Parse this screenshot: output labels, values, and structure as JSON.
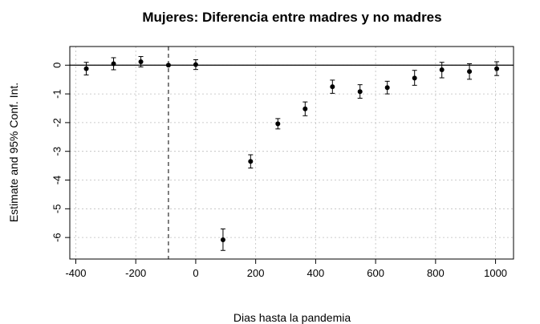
{
  "chart_data": {
    "type": "scatter",
    "title": "Mujeres: Diferencia entre madres y no madres",
    "xlabel": "Dias hasta la pandemia",
    "ylabel": "Estimate and 95% Conf. Int.",
    "xlim": [
      -420,
      1060
    ],
    "ylim": [
      -6.75,
      0.65
    ],
    "x_ticks": [
      -400,
      -200,
      0,
      200,
      400,
      600,
      800,
      1000
    ],
    "y_ticks": [
      0,
      -1,
      -2,
      -3,
      -4,
      -5,
      -6
    ],
    "grid": true,
    "horizontal_reference": 0,
    "vertical_reference": -91,
    "points": [
      {
        "x": -365,
        "y": -0.12,
        "lo": -0.34,
        "hi": 0.1
      },
      {
        "x": -274,
        "y": 0.05,
        "lo": -0.16,
        "hi": 0.26
      },
      {
        "x": -183,
        "y": 0.12,
        "lo": -0.06,
        "hi": 0.3
      },
      {
        "x": -91,
        "y": 0.0,
        "lo": 0.0,
        "hi": 0.0
      },
      {
        "x": 0,
        "y": 0.02,
        "lo": -0.15,
        "hi": 0.19
      },
      {
        "x": 91,
        "y": -6.08,
        "lo": -6.45,
        "hi": -5.7
      },
      {
        "x": 183,
        "y": -3.35,
        "lo": -3.58,
        "hi": -3.12
      },
      {
        "x": 274,
        "y": -2.04,
        "lo": -2.22,
        "hi": -1.86
      },
      {
        "x": 365,
        "y": -1.52,
        "lo": -1.76,
        "hi": -1.28
      },
      {
        "x": 456,
        "y": -0.75,
        "lo": -0.98,
        "hi": -0.52
      },
      {
        "x": 548,
        "y": -0.92,
        "lo": -1.15,
        "hi": -0.68
      },
      {
        "x": 639,
        "y": -0.78,
        "lo": -1.0,
        "hi": -0.56
      },
      {
        "x": 730,
        "y": -0.45,
        "lo": -0.7,
        "hi": -0.18
      },
      {
        "x": 821,
        "y": -0.16,
        "lo": -0.44,
        "hi": 0.1
      },
      {
        "x": 913,
        "y": -0.22,
        "lo": -0.49,
        "hi": 0.05
      },
      {
        "x": 1004,
        "y": -0.12,
        "lo": -0.36,
        "hi": 0.12
      }
    ]
  }
}
